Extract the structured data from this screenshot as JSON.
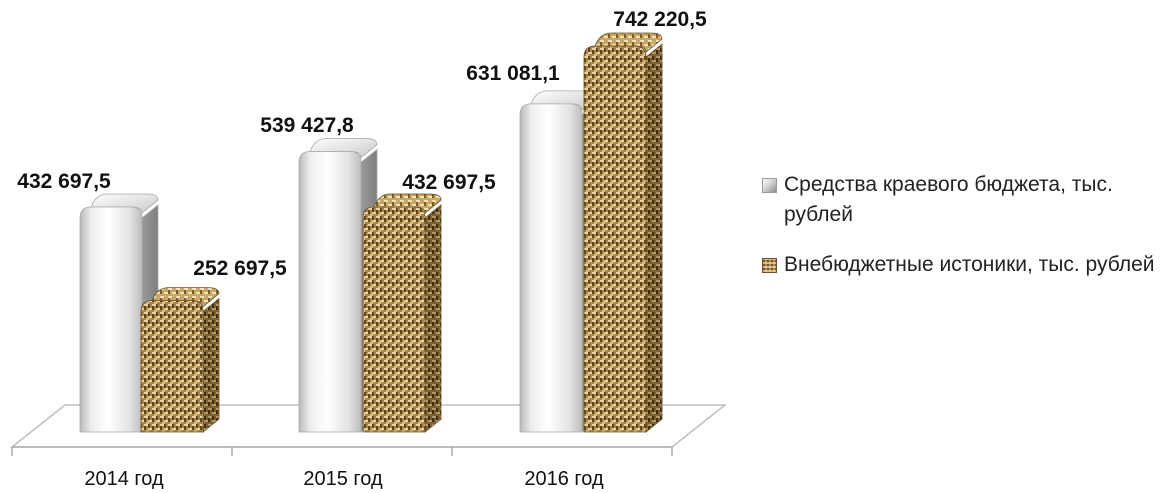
{
  "chart_data": {
    "type": "bar",
    "categories": [
      "2014 год",
      "2015 год",
      "2016 год"
    ],
    "series": [
      {
        "name": "Средства краевого бюджета, тыс. рублей",
        "values": [
          432697.5,
          539427.8,
          631081.1
        ],
        "labels": [
          "432 697,5",
          "539 427,8",
          "631 081,1"
        ],
        "color": "#d9d9d9"
      },
      {
        "name": "Внебюджетные истоники, тыс. рублей",
        "values": [
          252697.5,
          432697.5,
          742220.5
        ],
        "labels": [
          "252 697,5",
          "432 697,5",
          "742 220,5"
        ],
        "color": "#b08d52"
      }
    ],
    "ylim": [
      0,
      800000
    ],
    "grid": false,
    "legend_position": "right",
    "style": "3d-clustered-column"
  }
}
